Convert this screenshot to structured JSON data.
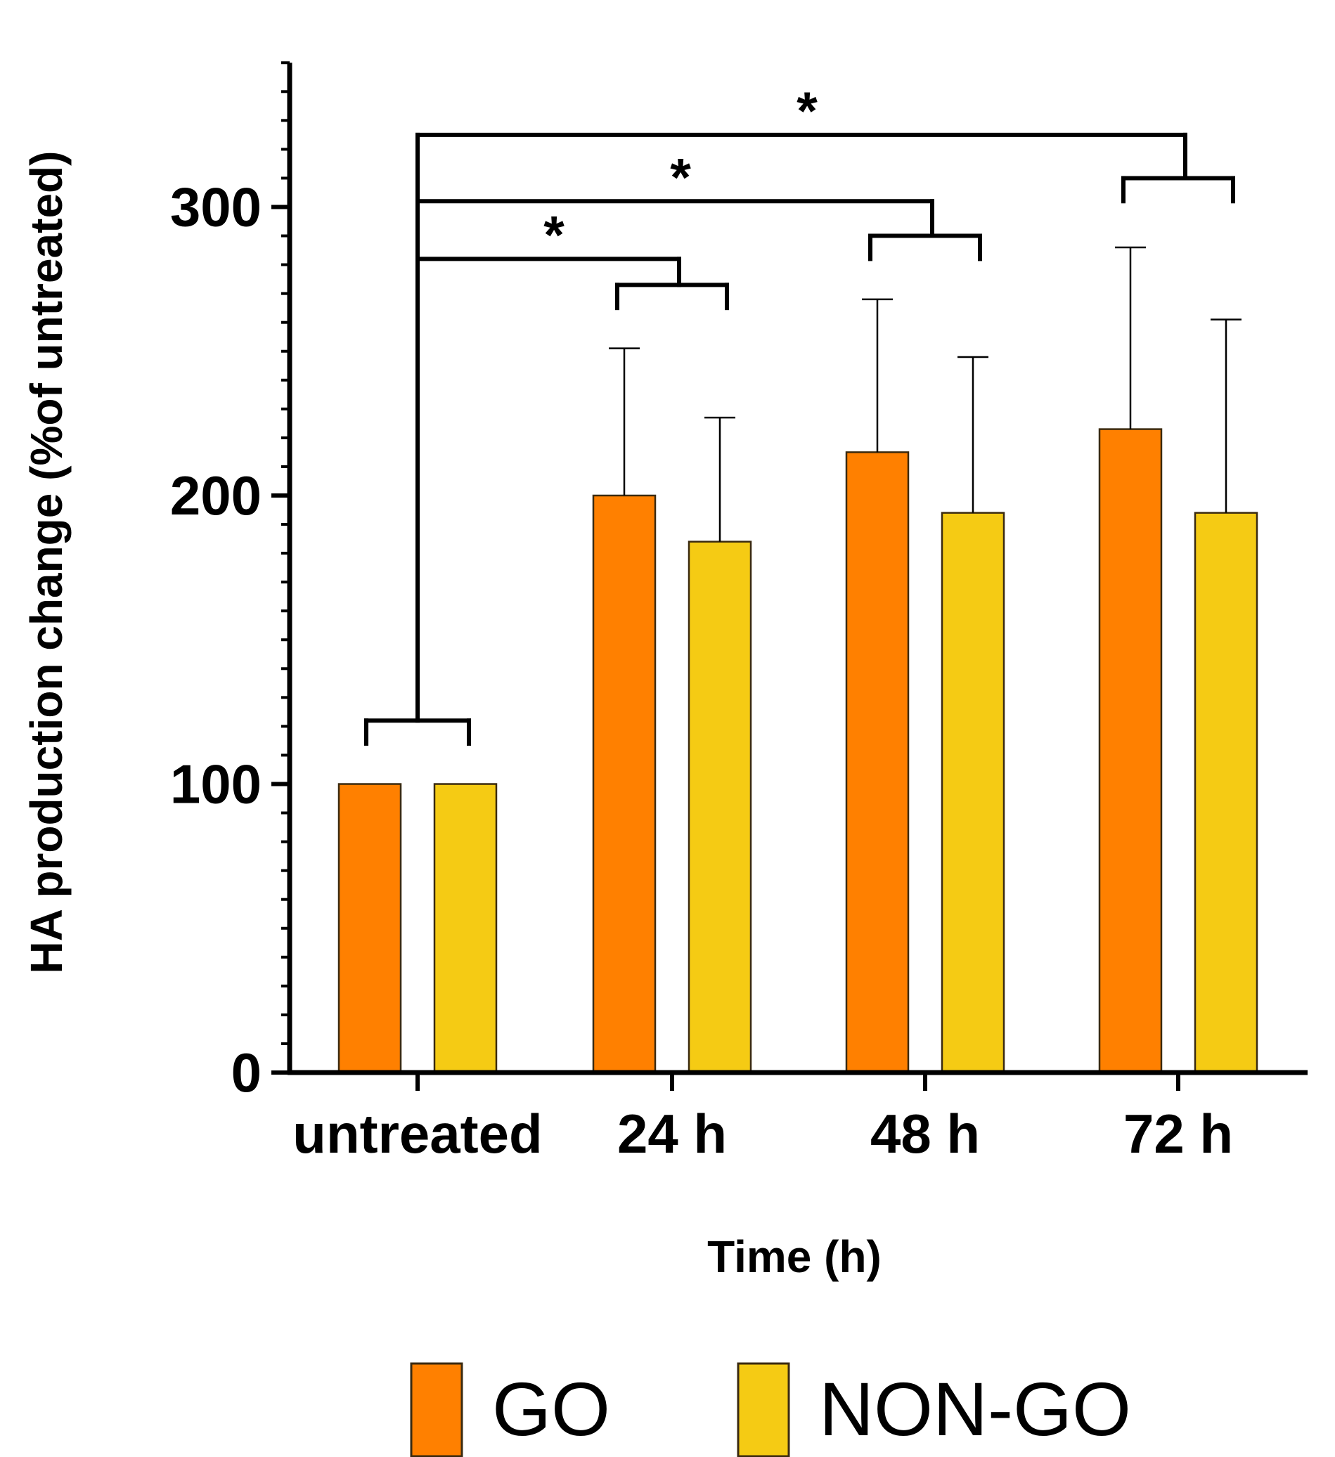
{
  "chart_data": {
    "type": "bar",
    "title": "",
    "xlabel": "Time (h)",
    "ylabel": "HA production change (%of untreated)",
    "categories": [
      "untreated",
      "24 h",
      "48 h",
      "72 h"
    ],
    "ylim": [
      0,
      350
    ],
    "yticks": [
      "0",
      "100",
      "200",
      "300"
    ],
    "grid": false,
    "legend_position": "bottom",
    "series": [
      {
        "name": "GO",
        "color": "#FF8000",
        "values": [
          100,
          200,
          215,
          223
        ],
        "errors": [
          0,
          51,
          53,
          63
        ]
      },
      {
        "name": "NON-GO",
        "color": "#F5CB14",
        "values": [
          100,
          184,
          194,
          194
        ],
        "errors": [
          0,
          43,
          54,
          67
        ]
      }
    ],
    "annotations": [
      {
        "label": "*",
        "from": "untreated",
        "to": "24 h"
      },
      {
        "label": "*",
        "from": "untreated",
        "to": "48 h"
      },
      {
        "label": "*",
        "from": "untreated",
        "to": "72 h"
      }
    ]
  }
}
